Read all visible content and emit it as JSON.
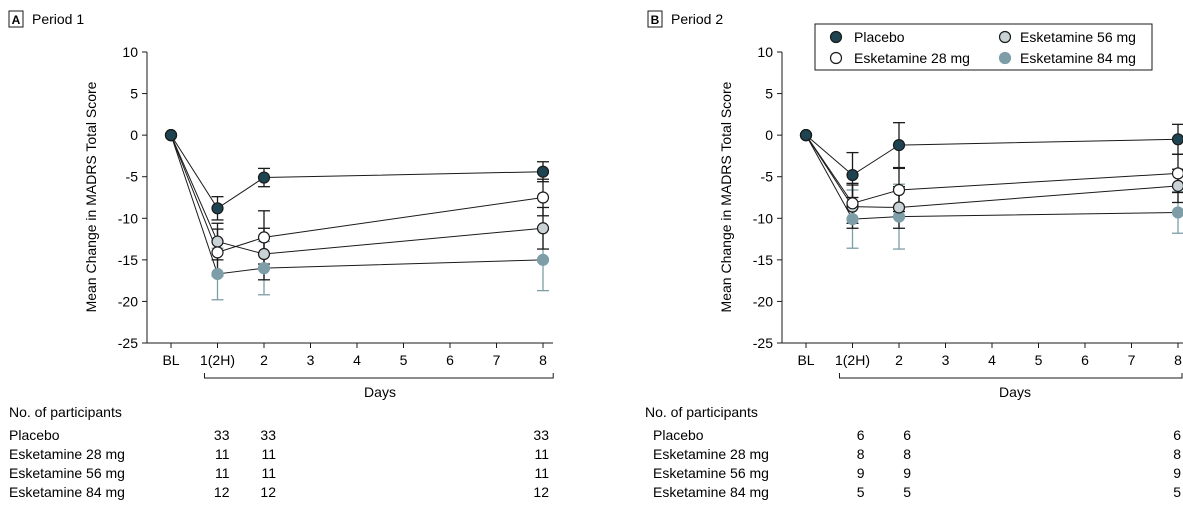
{
  "colors": {
    "placebo": "#1f4451",
    "esketamine_28": "#ffffff",
    "esketamine_56": "#c9d3d6",
    "esketamine_84": "#7d9ea8",
    "axis": "#1a1a1a"
  },
  "legend": {
    "items": [
      {
        "label": "Placebo",
        "series": "placebo"
      },
      {
        "label": "Esketamine 56 mg",
        "series": "esk56"
      },
      {
        "label": "Esketamine 28 mg",
        "series": "esk28"
      },
      {
        "label": "Esketamine 84 mg",
        "series": "esk84"
      }
    ]
  },
  "chart_data": [
    {
      "type": "line",
      "panel_letter": "A",
      "title": "Period 1",
      "ylabel": "Mean Change in MADRS Total Score",
      "xlabel": "Days",
      "ylim": [
        -25,
        10
      ],
      "yticks": [
        10,
        5,
        0,
        -5,
        -10,
        -15,
        -20,
        -25
      ],
      "x_positions": [
        0,
        1,
        2,
        3,
        4,
        5,
        6,
        7,
        8
      ],
      "x_tick_labels": [
        "BL",
        "1(2H)",
        "2",
        "3",
        "4",
        "5",
        "6",
        "7",
        "8"
      ],
      "series": [
        {
          "name": "Placebo",
          "key": "placebo",
          "x": [
            0,
            1,
            2,
            8
          ],
          "values": [
            0,
            -8.8,
            -5.1,
            -4.4
          ],
          "err": [
            0,
            1.4,
            1.1,
            1.2
          ]
        },
        {
          "name": "Esketamine 28 mg",
          "key": "esk28",
          "x": [
            0,
            1,
            2,
            8
          ],
          "values": [
            0,
            -14.1,
            -12.3,
            -7.5
          ],
          "err": [
            0,
            2.8,
            3.2,
            2.2
          ]
        },
        {
          "name": "Esketamine 56 mg",
          "key": "esk56",
          "x": [
            0,
            1,
            2,
            8
          ],
          "values": [
            0,
            -12.8,
            -14.3,
            -11.2
          ],
          "err": [
            0,
            2.2,
            3.1,
            2.5
          ]
        },
        {
          "name": "Esketamine 84 mg",
          "key": "esk84",
          "x": [
            0,
            1,
            2,
            8
          ],
          "values": [
            0,
            -16.7,
            -16.0,
            -15.0
          ],
          "err": [
            0,
            3.1,
            3.2,
            3.7
          ]
        }
      ],
      "participants": {
        "heading": "No. of participants",
        "rows": [
          {
            "label": "Placebo",
            "x": [
              1,
              2,
              8
            ],
            "counts": [
              "33",
              "33",
              "33"
            ]
          },
          {
            "label": "Esketamine 28 mg",
            "x": [
              1,
              2,
              8
            ],
            "counts": [
              "11",
              "11",
              "11"
            ]
          },
          {
            "label": "Esketamine 56 mg",
            "x": [
              1,
              2,
              8
            ],
            "counts": [
              "11",
              "11",
              "11"
            ]
          },
          {
            "label": "Esketamine 84 mg",
            "x": [
              1,
              2,
              8
            ],
            "counts": [
              "12",
              "12",
              "12"
            ]
          }
        ]
      }
    },
    {
      "type": "line",
      "panel_letter": "B",
      "title": "Period 2",
      "ylabel": "Mean Change in MADRS Total Score",
      "xlabel": "Days",
      "ylim": [
        -25,
        10
      ],
      "yticks": [
        10,
        5,
        0,
        -5,
        -10,
        -15,
        -20,
        -25
      ],
      "x_positions": [
        0,
        1,
        2,
        3,
        4,
        5,
        6,
        7,
        8
      ],
      "x_tick_labels": [
        "BL",
        "1(2H)",
        "2",
        "3",
        "4",
        "5",
        "6",
        "7",
        "8"
      ],
      "series": [
        {
          "name": "Placebo",
          "key": "placebo",
          "x": [
            0,
            1,
            2,
            8
          ],
          "values": [
            0,
            -4.8,
            -1.2,
            -0.5
          ],
          "err": [
            0,
            2.7,
            2.7,
            1.8
          ]
        },
        {
          "name": "Esketamine 28 mg",
          "key": "esk28",
          "x": [
            0,
            1,
            2,
            8
          ],
          "values": [
            0,
            -8.2,
            -6.6,
            -4.6
          ],
          "err": [
            0,
            2.4,
            2.6,
            2.3
          ]
        },
        {
          "name": "Esketamine 56 mg",
          "key": "esk56",
          "x": [
            0,
            1,
            2,
            8
          ],
          "values": [
            0,
            -8.6,
            -8.7,
            -6.1
          ],
          "err": [
            0,
            2.6,
            2.5,
            2.0
          ]
        },
        {
          "name": "Esketamine 84 mg",
          "key": "esk84",
          "x": [
            0,
            1,
            2,
            8
          ],
          "values": [
            0,
            -10.1,
            -9.8,
            -9.3
          ],
          "err": [
            0,
            3.5,
            3.9,
            2.5
          ]
        }
      ],
      "participants": {
        "heading": "No. of participants",
        "rows": [
          {
            "label": "Placebo",
            "x": [
              1,
              2,
              8
            ],
            "counts": [
              "6",
              "6",
              "6"
            ]
          },
          {
            "label": "Esketamine 28 mg",
            "x": [
              1,
              2,
              8
            ],
            "counts": [
              "8",
              "8",
              "8"
            ]
          },
          {
            "label": "Esketamine 56 mg",
            "x": [
              1,
              2,
              8
            ],
            "counts": [
              "9",
              "9",
              "9"
            ]
          },
          {
            "label": "Esketamine 84 mg",
            "x": [
              1,
              2,
              8
            ],
            "counts": [
              "5",
              "5",
              "5"
            ]
          }
        ]
      }
    }
  ]
}
